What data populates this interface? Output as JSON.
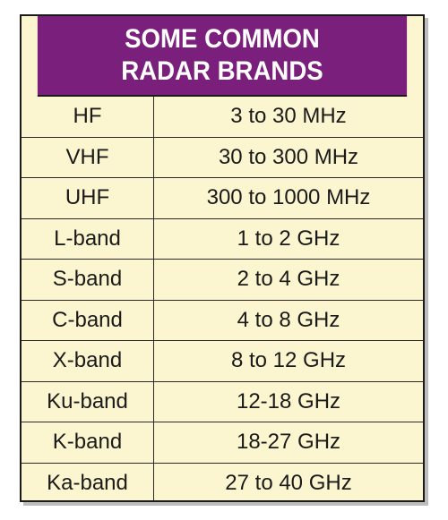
{
  "table": {
    "title_line1": "SOME COMMON",
    "title_line2": "RADAR BRANDS",
    "rows": [
      {
        "band": "HF",
        "range": "3 to 30 MHz"
      },
      {
        "band": "VHF",
        "range": "30 to 300 MHz"
      },
      {
        "band": "UHF",
        "range": "300 to 1000 MHz"
      },
      {
        "band": "L-band",
        "range": "1 to 2 GHz"
      },
      {
        "band": "S-band",
        "range": "2 to 4 GHz"
      },
      {
        "band": "C-band",
        "range": "4 to 8 GHz"
      },
      {
        "band": "X-band",
        "range": "8 to 12 GHz"
      },
      {
        "band": "Ku-band",
        "range": "12-18 GHz"
      },
      {
        "band": "K-band",
        "range": "18-27 GHz"
      },
      {
        "band": "Ka-band",
        "range": "27 to 40 GHz"
      }
    ]
  },
  "colors": {
    "header_bg": "#7b1f7c",
    "header_text": "#ffffff",
    "body_bg": "#fbf6cf",
    "border": "#1a1a1a"
  }
}
